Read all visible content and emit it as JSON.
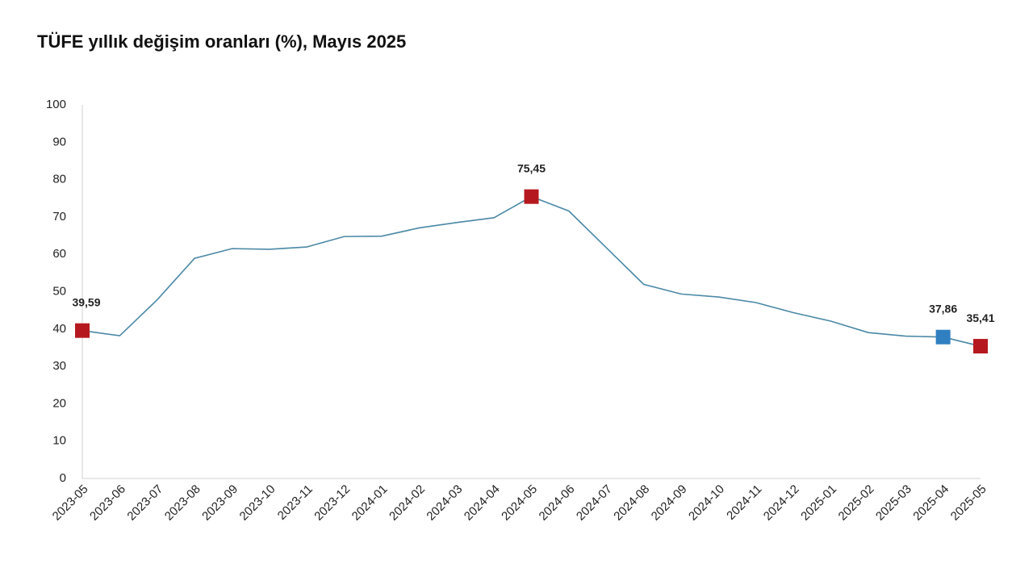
{
  "chart_data": {
    "type": "line",
    "title": "TÜFE yıllık değişim oranları (%), Mayıs 2025",
    "categories": [
      "2023-05",
      "2023-06",
      "2023-07",
      "2023-08",
      "2023-09",
      "2023-10",
      "2023-11",
      "2023-12",
      "2024-01",
      "2024-02",
      "2024-03",
      "2024-04",
      "2024-05",
      "2024-06",
      "2024-07",
      "2024-08",
      "2024-09",
      "2024-10",
      "2024-11",
      "2024-12",
      "2025-01",
      "2025-02",
      "2025-03",
      "2025-04",
      "2025-05"
    ],
    "values": [
      39.59,
      38.21,
      47.83,
      58.94,
      61.53,
      61.36,
      61.98,
      64.77,
      64.86,
      67.07,
      68.5,
      69.8,
      75.45,
      71.6,
      61.78,
      51.97,
      49.38,
      48.58,
      47.09,
      44.38,
      42.12,
      39.05,
      38.1,
      37.86,
      35.41
    ],
    "value_labels": [
      "39,59",
      null,
      null,
      null,
      null,
      null,
      null,
      null,
      null,
      null,
      null,
      null,
      "75,45",
      null,
      null,
      null,
      null,
      null,
      null,
      null,
      null,
      null,
      null,
      "37,86",
      "35,41"
    ],
    "marker_colors": [
      "#b5191f",
      null,
      null,
      null,
      null,
      null,
      null,
      null,
      null,
      null,
      null,
      null,
      "#b5191f",
      null,
      null,
      null,
      null,
      null,
      null,
      null,
      null,
      null,
      null,
      "#2f7fc1",
      "#b5191f"
    ],
    "color": "#4a88a6",
    "ylim": [
      0,
      100
    ],
    "yticks": [
      0,
      10,
      20,
      30,
      40,
      50,
      60,
      70,
      80,
      90,
      100
    ]
  }
}
